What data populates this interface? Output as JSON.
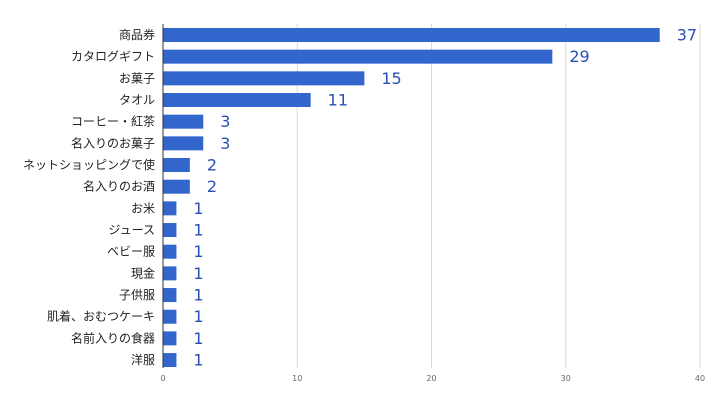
{
  "chart_data": {
    "type": "bar",
    "orientation": "horizontal",
    "title": "",
    "xlabel": "",
    "ylabel": "",
    "categories": [
      "商品券",
      "カタログギフト",
      "お菓子",
      "タオル",
      "コーヒー・紅茶",
      "名入りのお菓子",
      "ネットショッピングで使",
      "名入りのお酒",
      "お米",
      "ジュース",
      "ベビー服",
      "現金",
      "子供服",
      "肌着、おむつケーキ",
      "名前入りの食器",
      "洋服"
    ],
    "values": [
      37,
      29,
      15,
      11,
      3,
      3,
      2,
      2,
      1,
      1,
      1,
      1,
      1,
      1,
      1,
      1
    ],
    "xlim": [
      0,
      40
    ],
    "xticks": [
      "0",
      "10",
      "20",
      "30",
      "40"
    ],
    "grid": true,
    "legend": "none",
    "data_labels": true,
    "colors": {
      "bar": "#3366cc",
      "value_label": "#2a50b5",
      "grid": "#d9d9d9"
    }
  }
}
